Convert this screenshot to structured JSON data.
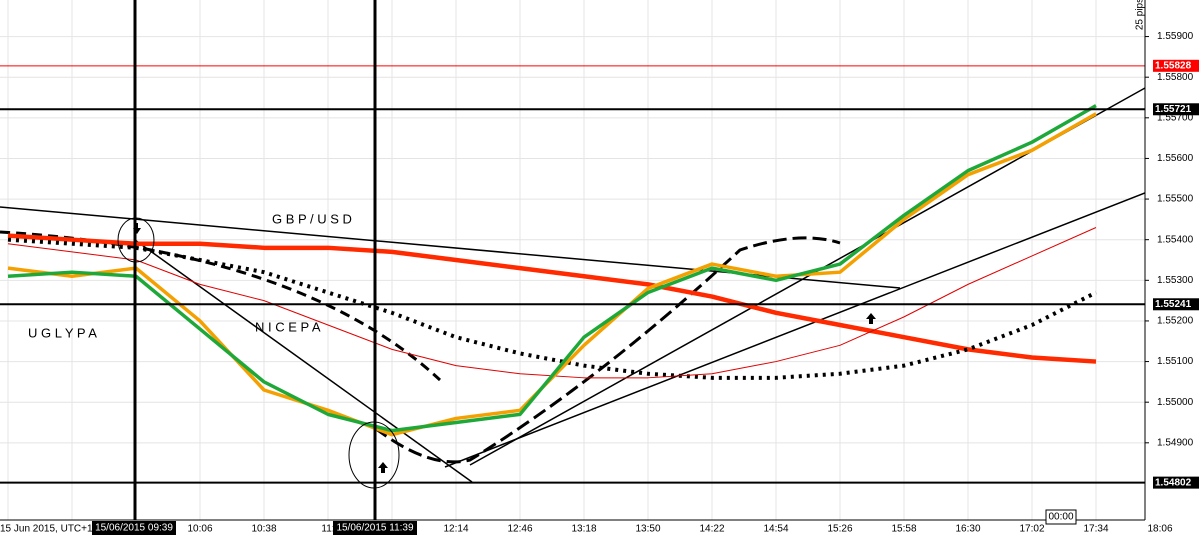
{
  "chart_data": {
    "type": "line",
    "title": "G B P / U S D",
    "annotations": [
      "U G L Y P A",
      "N I C E P A",
      "25 pips"
    ],
    "date_label": "15 Jun 2015, UTC+1",
    "cursor_labels": [
      "15/06/2015 09:39",
      "15/06/2015 11:39",
      "00:00"
    ],
    "categories": [
      null,
      null,
      null,
      "10:06",
      "10:38",
      "11:",
      null,
      "12:14",
      "12:46",
      "13:18",
      "13:50",
      "14:22",
      "14:54",
      "15:26",
      "15:58",
      "16:30",
      "17:02",
      "17:34",
      "18:06"
    ],
    "ylim": [
      1.5471,
      1.5599
    ],
    "yticks": [
      {
        "value": 1.549,
        "label": "1.54900"
      },
      {
        "value": 1.55,
        "label": "1.55000"
      },
      {
        "value": 1.551,
        "label": "1.55100"
      },
      {
        "value": 1.552,
        "label": "1.55200"
      },
      {
        "value": 1.553,
        "label": "1.55300"
      },
      {
        "value": 1.554,
        "label": "1.55400"
      },
      {
        "value": 1.555,
        "label": "1.55500"
      },
      {
        "value": 1.556,
        "label": "1.55600"
      },
      {
        "value": 1.557,
        "label": "1.55700"
      },
      {
        "value": 1.558,
        "label": "1.55800"
      },
      {
        "value": 1.559,
        "label": "1.55900"
      }
    ],
    "grid": true,
    "levels": [
      1.55828,
      1.55721,
      1.55241,
      1.54802
    ],
    "level_colors": [
      "#ff0000",
      "#000000",
      "#000000",
      "#000000"
    ],
    "series": [
      {
        "color": "#ff2a00",
        "style": "thick",
        "values": [
          1.5541,
          1.554,
          1.5539,
          1.5539,
          1.5538,
          1.5538,
          1.5537,
          1.5535,
          1.5533,
          1.5531,
          1.5529,
          1.5526,
          1.5522,
          1.5519,
          1.5516,
          1.5513,
          1.5511,
          1.551,
          null
        ]
      },
      {
        "color": "#000000",
        "style": "dotted",
        "values": [
          1.554,
          1.5539,
          1.5538,
          1.5535,
          1.5532,
          1.5527,
          1.5522,
          1.5516,
          1.5512,
          1.5509,
          1.5507,
          1.5506,
          1.5506,
          1.5507,
          1.5509,
          1.5513,
          1.5519,
          1.5527,
          null
        ]
      },
      {
        "color": "#e00000",
        "style": "thin",
        "values": [
          1.5539,
          1.5537,
          1.5535,
          1.5529,
          1.5525,
          1.5519,
          1.5513,
          1.5509,
          1.5507,
          1.5506,
          1.5506,
          1.5507,
          1.551,
          1.5514,
          1.5521,
          1.5529,
          1.5536,
          1.5543,
          null
        ]
      },
      {
        "color": "#f4a000",
        "style": "price",
        "values": [
          1.5533,
          1.5531,
          1.5533,
          1.552,
          1.5503,
          1.5498,
          1.5492,
          1.5496,
          1.5498,
          1.5514,
          1.5528,
          1.5534,
          1.5531,
          1.5532,
          1.5545,
          1.5556,
          1.5562,
          1.5571,
          null
        ]
      },
      {
        "color": "#1fa83a",
        "style": "price",
        "values": [
          1.5531,
          1.5532,
          1.5531,
          1.5518,
          1.5505,
          1.5497,
          1.5493,
          1.5495,
          1.5497,
          1.5516,
          1.5527,
          1.5533,
          1.553,
          1.5534,
          1.5546,
          1.5557,
          1.5564,
          1.5573,
          null
        ]
      }
    ]
  }
}
